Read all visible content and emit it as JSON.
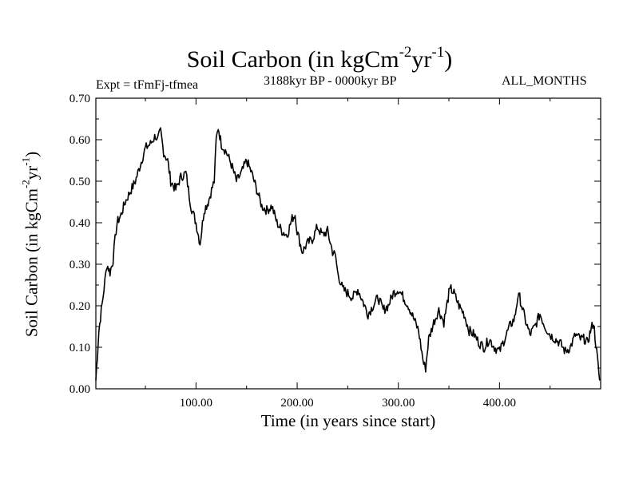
{
  "title": {
    "main": "Soil Carbon (in kgCm",
    "exp1": "-2",
    "mid": "yr",
    "exp2": "-1",
    "end": ")"
  },
  "expt_label": "Expt = tFmFj-tfmea",
  "period_label": "3188kyr BP - 0000kyr BP",
  "months_label": "ALL_MONTHS",
  "chart_data": {
    "type": "line",
    "title": "Soil Carbon (in kgCm-2yr-1)",
    "xlabel": "Time (in years since start)",
    "ylabel": "Soil Carbon (in kgCm-2yr-1)",
    "xlim": [
      1,
      500
    ],
    "ylim": [
      0,
      0.7
    ],
    "x_ticks": [
      100,
      200,
      300,
      400
    ],
    "x_tick_labels": [
      "100.00",
      "200.00",
      "300.00",
      "400.00"
    ],
    "y_ticks": [
      0,
      0.1,
      0.2,
      0.3,
      0.4,
      0.5,
      0.6,
      0.7
    ],
    "y_tick_labels": [
      "0.00",
      "0.10",
      "0.20",
      "0.30",
      "0.40",
      "0.50",
      "0.60",
      "0.70"
    ],
    "series": [
      {
        "name": "Soil Carbon",
        "color": "#000000",
        "x": [
          1,
          4,
          8,
          10,
          12,
          15,
          18,
          20,
          22,
          26,
          30,
          36,
          40,
          45,
          50,
          55,
          60,
          62,
          65,
          68,
          72,
          75,
          80,
          85,
          90,
          95,
          100,
          104,
          108,
          112,
          118,
          120,
          122,
          125,
          130,
          135,
          140,
          145,
          150,
          155,
          160,
          165,
          170,
          175,
          180,
          185,
          190,
          195,
          198,
          200,
          205,
          210,
          215,
          220,
          225,
          230,
          235,
          238,
          240,
          245,
          250,
          255,
          260,
          265,
          270,
          275,
          280,
          285,
          290,
          295,
          300,
          305,
          310,
          315,
          320,
          325,
          327,
          330,
          335,
          340,
          345,
          350,
          352,
          355,
          360,
          365,
          370,
          375,
          380,
          385,
          390,
          395,
          400,
          405,
          410,
          415,
          418,
          420,
          425,
          430,
          435,
          440,
          445,
          450,
          455,
          460,
          465,
          470,
          475,
          480,
          484,
          487,
          490,
          493,
          496,
          499
        ],
        "y": [
          0.02,
          0.14,
          0.22,
          0.26,
          0.3,
          0.28,
          0.31,
          0.36,
          0.4,
          0.42,
          0.45,
          0.48,
          0.5,
          0.54,
          0.58,
          0.59,
          0.61,
          0.6,
          0.62,
          0.57,
          0.55,
          0.5,
          0.48,
          0.51,
          0.52,
          0.44,
          0.4,
          0.35,
          0.43,
          0.45,
          0.5,
          0.6,
          0.63,
          0.59,
          0.57,
          0.54,
          0.5,
          0.52,
          0.55,
          0.52,
          0.48,
          0.44,
          0.43,
          0.44,
          0.4,
          0.38,
          0.37,
          0.41,
          0.42,
          0.38,
          0.33,
          0.35,
          0.36,
          0.39,
          0.37,
          0.38,
          0.33,
          0.32,
          0.28,
          0.24,
          0.23,
          0.22,
          0.24,
          0.21,
          0.18,
          0.2,
          0.22,
          0.19,
          0.2,
          0.23,
          0.24,
          0.22,
          0.2,
          0.17,
          0.14,
          0.06,
          0.05,
          0.12,
          0.16,
          0.19,
          0.16,
          0.23,
          0.24,
          0.23,
          0.2,
          0.18,
          0.14,
          0.13,
          0.11,
          0.1,
          0.12,
          0.1,
          0.09,
          0.12,
          0.15,
          0.17,
          0.22,
          0.22,
          0.17,
          0.13,
          0.15,
          0.18,
          0.15,
          0.13,
          0.12,
          0.11,
          0.09,
          0.1,
          0.13,
          0.12,
          0.12,
          0.11,
          0.14,
          0.16,
          0.09,
          0.02
        ]
      }
    ]
  }
}
